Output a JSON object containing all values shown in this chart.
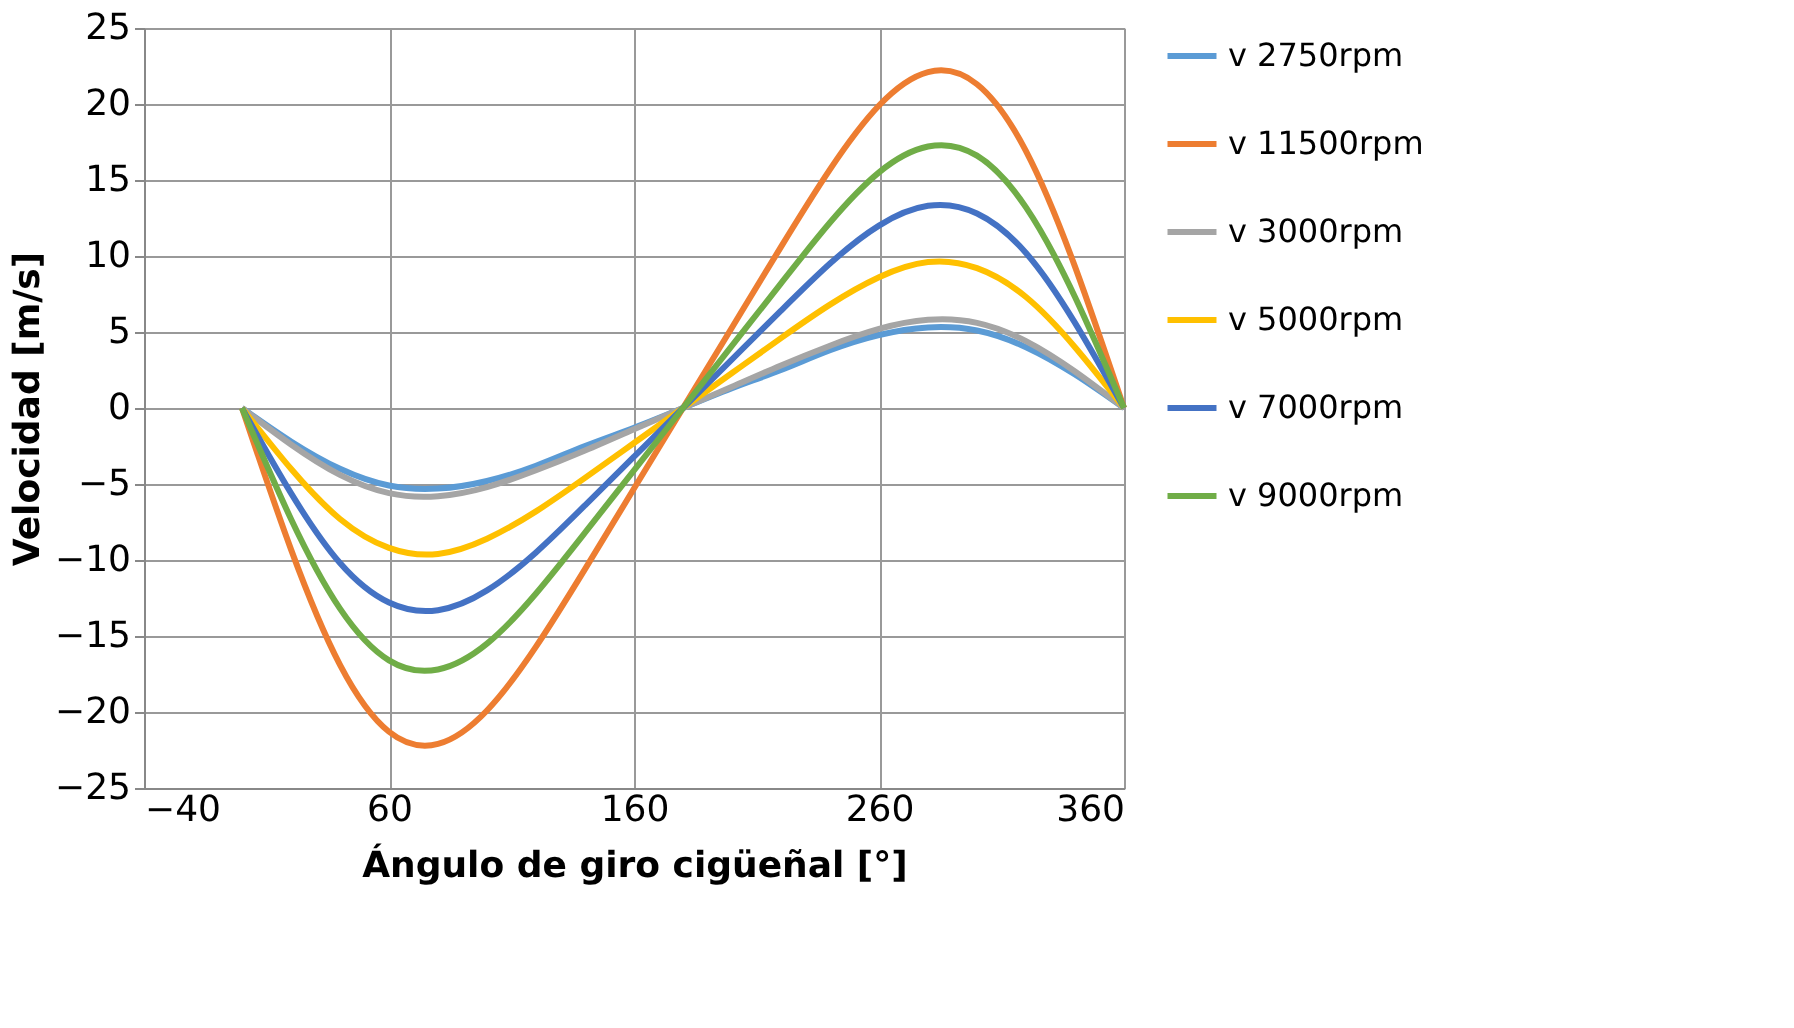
{
  "chart_data": {
    "type": "line",
    "xlabel": "Ángulo de giro cigüeñal [°]",
    "ylabel": "Velocidad [m/s]",
    "x": [
      0,
      20,
      40,
      60,
      80,
      100,
      120,
      140,
      160,
      180,
      200,
      220,
      240,
      260,
      280,
      300,
      320,
      340,
      360
    ],
    "xlim": [
      -40,
      360
    ],
    "xticks": [
      -40,
      60,
      160,
      260,
      360
    ],
    "ylim": [
      -25,
      25
    ],
    "yticks": [
      -25,
      -20,
      -15,
      -10,
      -5,
      0,
      5,
      10,
      15,
      20,
      25
    ],
    "grid": true,
    "legend": "right",
    "line_style": "solid",
    "marker": "none",
    "series": [
      {
        "name": "v 2750rpm",
        "color": "#5b9bd5",
        "values": [
          0,
          -2.2,
          -4.0,
          -5.1,
          -5.3,
          -4.8,
          -3.8,
          -2.5,
          -1.3,
          0,
          1.3,
          2.5,
          3.8,
          4.8,
          5.3,
          5.1,
          4.0,
          2.2,
          0
        ]
      },
      {
        "name": "v 11500rpm",
        "color": "#ed7d31",
        "values": [
          0,
          -9.3,
          -16.9,
          -21.3,
          -22.1,
          -19.9,
          -15.7,
          -10.6,
          -5.3,
          0,
          5.3,
          10.6,
          15.7,
          19.9,
          22.1,
          21.3,
          16.9,
          9.3,
          0
        ]
      },
      {
        "name": "v 3000rpm",
        "color": "#a5a5a5",
        "values": [
          0,
          -2.4,
          -4.4,
          -5.6,
          -5.8,
          -5.2,
          -4.1,
          -2.8,
          -1.4,
          0,
          1.4,
          2.8,
          4.1,
          5.2,
          5.8,
          5.6,
          4.4,
          2.4,
          0
        ]
      },
      {
        "name": "v 5000rpm",
        "color": "#ffc000",
        "values": [
          0,
          -4.0,
          -7.3,
          -9.2,
          -9.6,
          -8.6,
          -6.8,
          -4.6,
          -2.3,
          0,
          2.3,
          4.6,
          6.8,
          8.6,
          9.6,
          9.2,
          7.3,
          4.0,
          0
        ]
      },
      {
        "name": "v 7000rpm",
        "color": "#4472c4",
        "values": [
          0,
          -5.6,
          -10.2,
          -12.8,
          -13.3,
          -12.0,
          -9.5,
          -6.4,
          -3.2,
          0,
          3.2,
          6.4,
          9.5,
          12.0,
          13.3,
          12.8,
          10.2,
          5.6,
          0
        ]
      },
      {
        "name": "v 9000rpm",
        "color": "#70ad47",
        "values": [
          0,
          -7.3,
          -13.2,
          -16.6,
          -17.2,
          -15.5,
          -12.2,
          -8.2,
          -4.1,
          0,
          4.1,
          8.2,
          12.2,
          15.5,
          17.2,
          16.6,
          13.2,
          7.3,
          0
        ]
      }
    ]
  }
}
